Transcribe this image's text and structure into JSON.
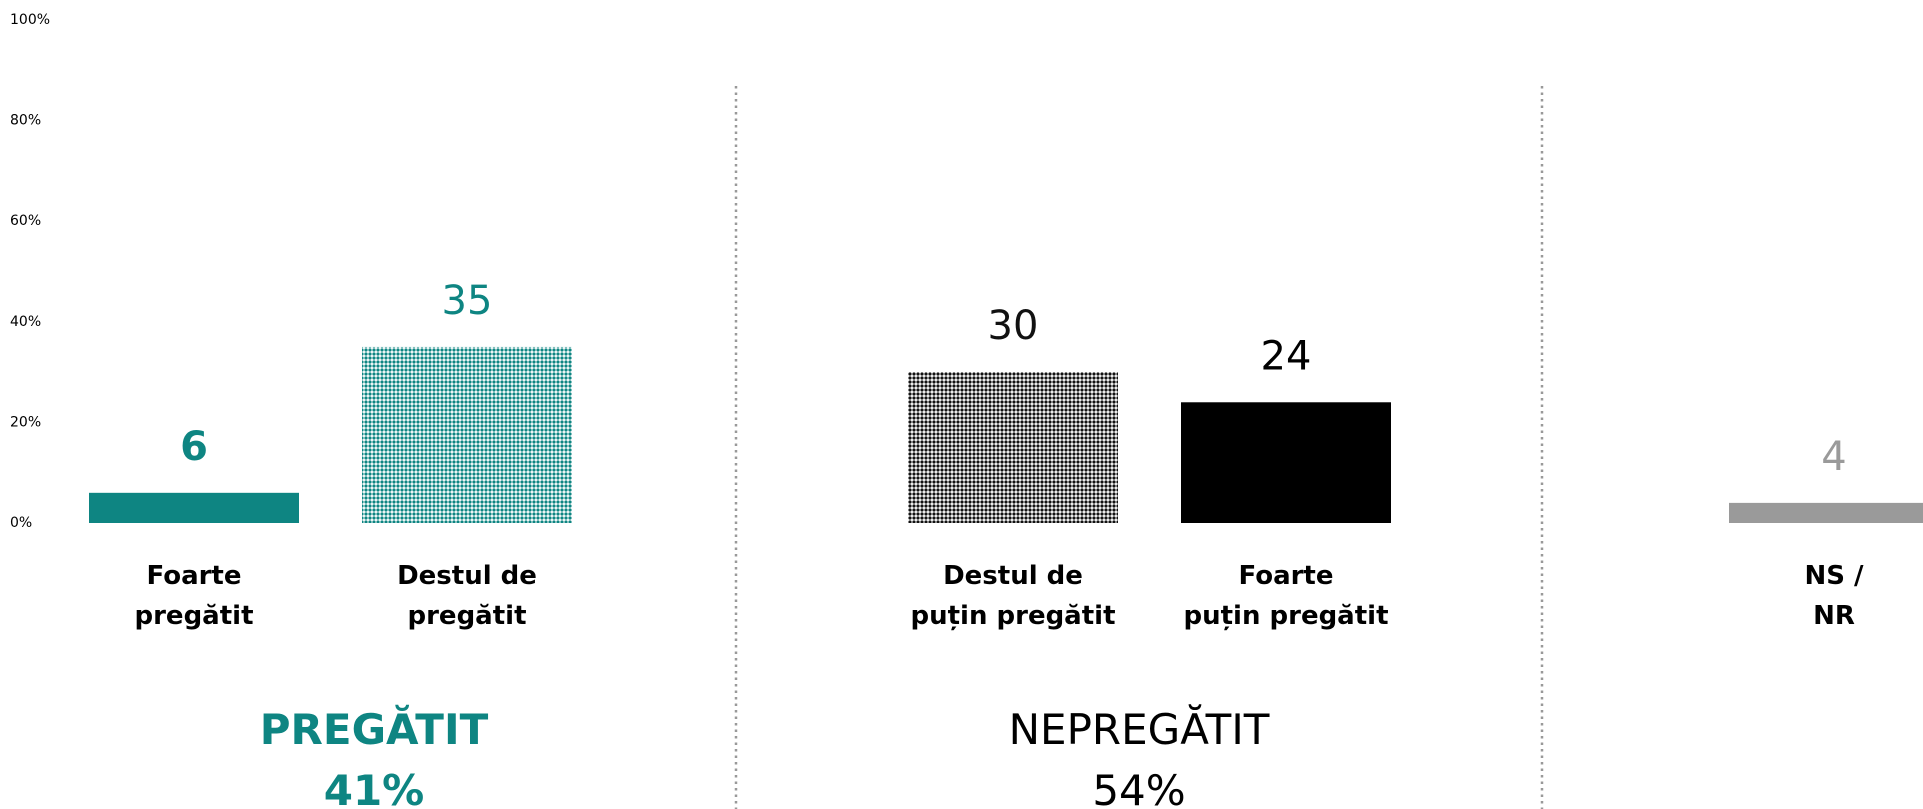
{
  "chart_data": {
    "type": "bar",
    "categories": [
      "Foarte\npregătit",
      "Destul de\npregătit",
      "Destul de\npuțin pregătit",
      "Foarte\npuțin pregătit",
      "NS / NR"
    ],
    "values": [
      6,
      35,
      30,
      24,
      4
    ],
    "colors": [
      "#0e8582",
      "#0e8582",
      "#111111",
      "#000000",
      "#9a9a9a"
    ],
    "patterns": [
      "solid",
      "dotted",
      "dotted",
      "solid",
      "solid"
    ],
    "value_label_bold": [
      true,
      false,
      false,
      false,
      false
    ],
    "ylim": [
      0,
      100
    ],
    "yticks": [
      {
        "value": 0,
        "label": "0%"
      },
      {
        "value": 20,
        "label": "20%"
      },
      {
        "value": 40,
        "label": "40%"
      },
      {
        "value": 60,
        "label": "60%"
      },
      {
        "value": 80,
        "label": "80%"
      },
      {
        "value": 100,
        "label": "100%"
      }
    ],
    "groups": [
      {
        "name": "PREGĂTIT",
        "value": 41,
        "value_label": "41%",
        "color": "#0e8582",
        "bold": true
      },
      {
        "name": "NEPREGĂTIT",
        "value": 54,
        "value_label": "54%",
        "color": "#000000",
        "bold": false
      }
    ]
  }
}
